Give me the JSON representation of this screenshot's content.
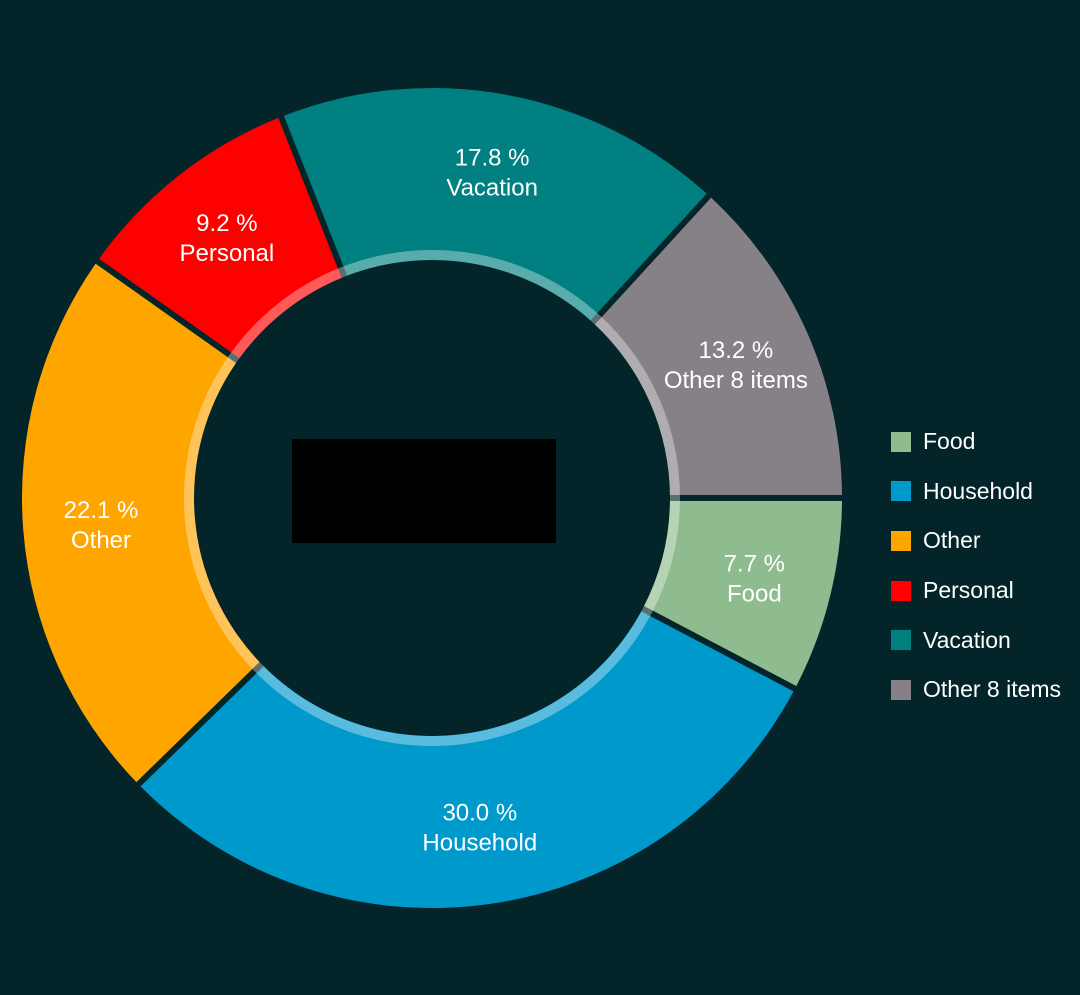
{
  "chart_data": {
    "type": "pie",
    "variant": "donut",
    "title": "",
    "start_angle_deg": 0,
    "direction": "clockwise",
    "slices": [
      {
        "name": "Food",
        "value": 7.7,
        "label": "7.7 %",
        "color": "#8fbc8f"
      },
      {
        "name": "Household",
        "value": 30.0,
        "label": "30.0 %",
        "color": "#0099cc"
      },
      {
        "name": "Other",
        "value": 22.1,
        "label": "22.1 %",
        "color": "#ffa500"
      },
      {
        "name": "Personal",
        "value": 9.2,
        "label": "9.2 %",
        "color": "#ff0000"
      },
      {
        "name": "Vacation",
        "value": 17.8,
        "label": "17.8 %",
        "color": "#008080"
      },
      {
        "name": "Other 8 items",
        "value": 13.2,
        "label": "13.2 %",
        "color": "#868187"
      }
    ],
    "legend_position": "right",
    "legend": [
      "Food",
      "Household",
      "Other",
      "Personal",
      "Vacation",
      "Other 8 items"
    ]
  },
  "theme": {
    "background": "#03252a",
    "center_redaction": "#000000",
    "text": "#ffffff"
  }
}
